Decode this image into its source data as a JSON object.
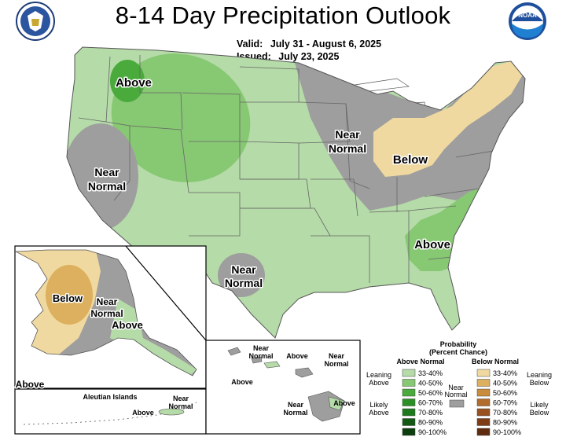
{
  "header": {
    "title": "8-14 Day Precipitation Outlook",
    "valid_label": "Valid:",
    "valid_value": "July 31 - August 6, 2025",
    "issued_label": "Issued:",
    "issued_value": "July 23, 2025"
  },
  "logos": {
    "left": "commerce-seal",
    "right": "noaa-logo",
    "noaa_text": "NOAA"
  },
  "colors": {
    "above_33_40": "#b5dba8",
    "above_40_50": "#87c873",
    "above_50_60": "#4aaa3c",
    "above_60_70": "#2c8f26",
    "above_70_80": "#1d7a1c",
    "above_80_90": "#125a14",
    "above_90_100": "#0b3d0d",
    "near_normal": "#9e9e9e",
    "below_33_40": "#f0d9a0",
    "below_40_50": "#dcb05e",
    "below_50_60": "#c98b3c",
    "below_60_70": "#b26c2c",
    "below_70_80": "#99521f",
    "below_80_90": "#7e3c15",
    "below_90_100": "#5e2b0e"
  },
  "map_labels": {
    "conus_above_nw": "Above",
    "conus_near_west_1": "Near",
    "conus_near_west_2": "Normal",
    "conus_near_tx_1": "Near",
    "conus_near_tx_2": "Normal",
    "conus_near_gl_1": "Near",
    "conus_near_gl_2": "Normal",
    "conus_below": "Below",
    "conus_above_se": "Above",
    "ak_below": "Below",
    "ak_near_1": "Near",
    "ak_near_2": "Normal",
    "ak_above": "Above",
    "ak_above_corner": "Above",
    "aleutian_title": "Aleutian Islands",
    "aleutian_near_1": "Near",
    "aleutian_near_2": "Normal",
    "aleutian_above": "Above",
    "hi_near_a_1": "Near",
    "hi_near_a_2": "Normal",
    "hi_above_a": "Above",
    "hi_near_b_1": "Near",
    "hi_near_b_2": "Normal",
    "hi_above_b": "Above",
    "hi_near_c_1": "Near",
    "hi_near_c_2": "Normal",
    "hi_above_c": "Above"
  },
  "legend": {
    "title_1": "Probability",
    "title_2": "(Percent Chance)",
    "above_header": "Above Normal",
    "below_header": "Below Normal",
    "near_label_1": "Near",
    "near_label_2": "Normal",
    "leaning_above_1": "Leaning",
    "leaning_above_2": "Above",
    "likely_above_1": "Likely",
    "likely_above_2": "Above",
    "leaning_below_1": "Leaning",
    "leaning_below_2": "Below",
    "likely_below_1": "Likely",
    "likely_below_2": "Below",
    "above_bins": [
      "33-40%",
      "40-50%",
      "50-60%",
      "60-70%",
      "70-80%",
      "80-90%",
      "90-100%"
    ],
    "below_bins": [
      "33-40%",
      "40-50%",
      "50-60%",
      "60-70%",
      "70-80%",
      "80-90%",
      "90-100%"
    ]
  }
}
